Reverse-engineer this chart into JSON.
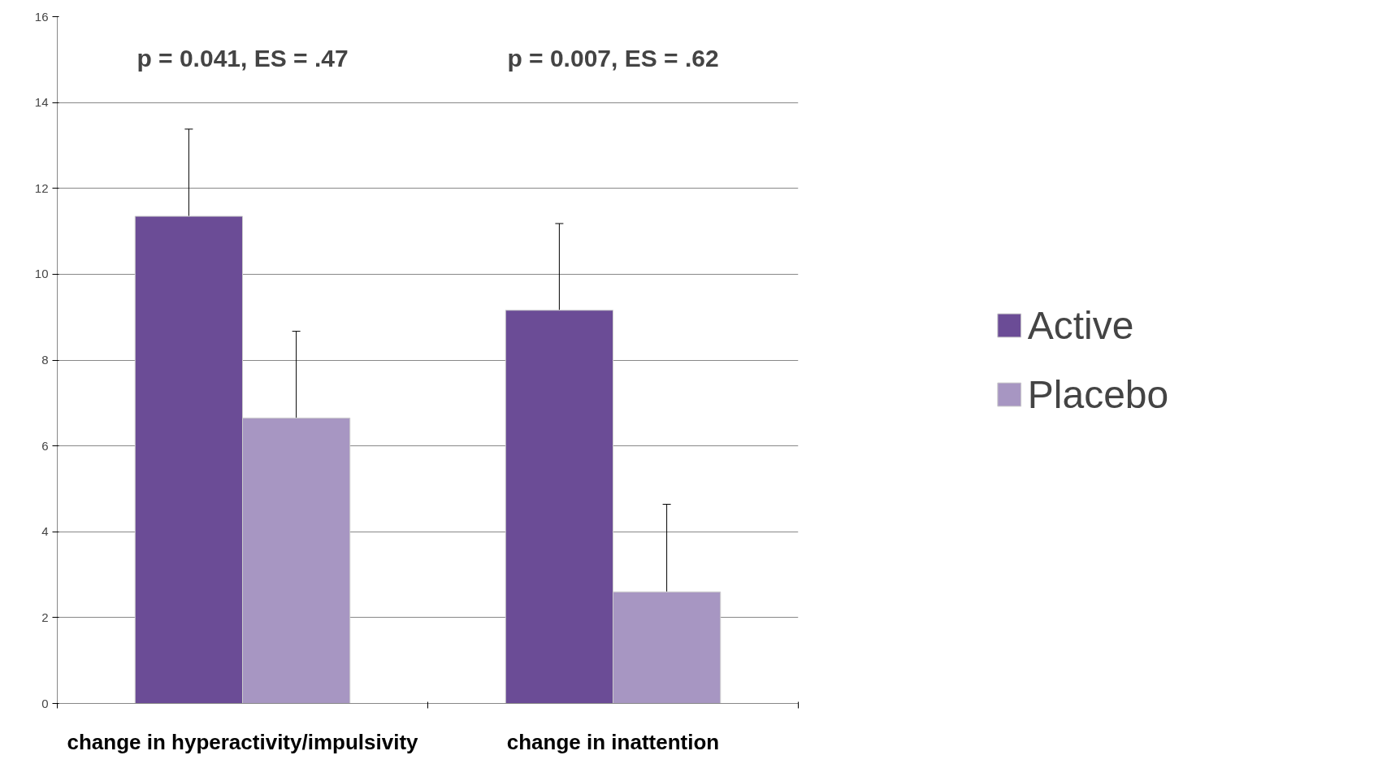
{
  "chart_data": {
    "type": "bar",
    "categories": [
      "change in hyperactivity/impulsivity",
      "change in inattention"
    ],
    "series": [
      {
        "name": "Active",
        "color": "#6b4c96",
        "values": [
          11.35,
          9.16
        ],
        "errors": [
          [
            11.35,
            13.38
          ],
          [
            9.16,
            11.18
          ]
        ]
      },
      {
        "name": "Placebo",
        "color": "#a796c2",
        "values": [
          6.65,
          2.6
        ],
        "errors": [
          [
            6.65,
            8.67
          ],
          [
            2.6,
            4.64
          ]
        ]
      }
    ],
    "ylim": [
      0,
      16
    ],
    "yticks": [
      0,
      2,
      4,
      6,
      8,
      10,
      12,
      14,
      16
    ],
    "grid": "y",
    "legend": "right",
    "annotations": [
      "p = 0.041, ES = .47",
      "p = 0.007, ES = .62"
    ]
  }
}
